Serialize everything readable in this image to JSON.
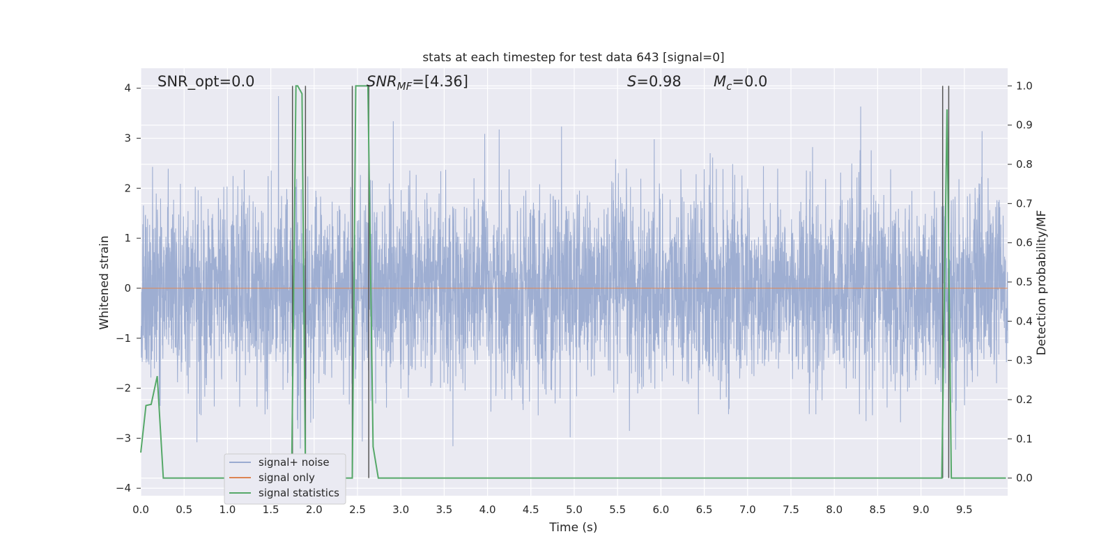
{
  "chart_data": {
    "type": "line",
    "title": "stats at each timestep for test data 643 [signal=0]",
    "xlabel": "Time (s)",
    "ylabel": "Whitened strain",
    "y2label": "Detection probability/MF",
    "xlim": [
      0.0,
      10.0
    ],
    "ylim": [
      -4.15,
      4.4
    ],
    "y2lim": [
      -0.045,
      1.045
    ],
    "xticks": [
      "0.0",
      "0.5",
      "1.0",
      "1.5",
      "2.0",
      "2.5",
      "3.0",
      "3.5",
      "4.0",
      "4.5",
      "5.0",
      "5.5",
      "6.0",
      "6.5",
      "7.0",
      "7.5",
      "8.0",
      "8.5",
      "9.0",
      "9.5"
    ],
    "yticks": [
      "4",
      "3",
      "2",
      "1",
      "0",
      "−1",
      "−2",
      "−3",
      "−4"
    ],
    "y2ticks": [
      "1.0",
      "0.9",
      "0.8",
      "0.7",
      "0.6",
      "0.5",
      "0.4",
      "0.3",
      "0.2",
      "0.1",
      "0.0"
    ],
    "grid": true,
    "legend_position": "lower-left",
    "annotations": {
      "snr_opt": "SNR_opt=0.0",
      "snr_mf_base": "SNR",
      "snr_mf_sub": "MF",
      "snr_mf_value": "=[4.36]",
      "s_sym": "S",
      "s_value": "=0.98",
      "mc_sym": "M",
      "mc_sub": "c",
      "mc_value": "=0.0"
    },
    "series": [
      {
        "name": "signal+ noise",
        "color": "#9aabd0",
        "summary": "whitened noise strain, approximately gaussian, mostly within -2.5..3, extremes to about 4"
      },
      {
        "name": "signal only",
        "color": "#dd8452",
        "summary": "constant zero"
      },
      {
        "name": "signal statistics",
        "color": "#55a868",
        "x": [
          0.0,
          0.06,
          0.12,
          0.19,
          0.26,
          1.74,
          1.79,
          1.81,
          1.86,
          1.9,
          2.44,
          2.48,
          2.52,
          2.58,
          2.62,
          2.68,
          2.74,
          9.24,
          9.3,
          9.35,
          9.98
        ],
        "y2": [
          0.065,
          0.185,
          0.188,
          0.26,
          0.0,
          0.0,
          1.0,
          1.0,
          0.98,
          0.0,
          0.0,
          1.0,
          1.0,
          1.0,
          1.0,
          0.08,
          0.0,
          0.0,
          0.94,
          0.0,
          0.0
        ]
      }
    ],
    "vlines_x": [
      1.75,
      1.9,
      2.44,
      2.63,
      9.25,
      9.32
    ],
    "vline_color": "#555555"
  }
}
